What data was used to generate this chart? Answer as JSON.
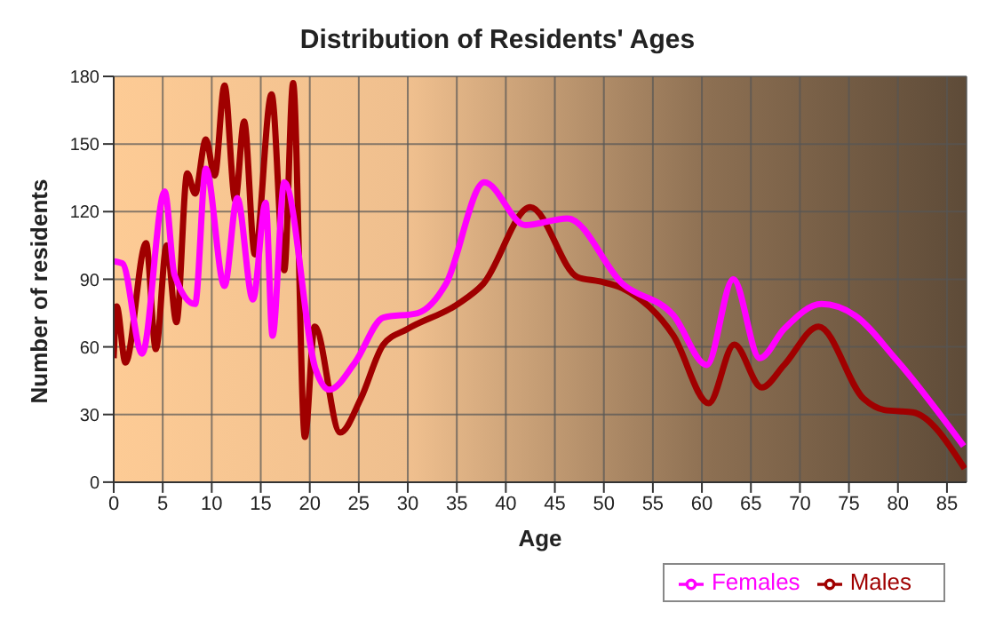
{
  "chart_data": {
    "type": "line",
    "title": "Distribution of Residents' Ages",
    "xlabel": "Age",
    "ylabel": "Number of residents",
    "xlim": [
      0,
      87
    ],
    "xticks": [
      0,
      5,
      10,
      15,
      20,
      25,
      30,
      35,
      40,
      45,
      50,
      55,
      60,
      65,
      70,
      75,
      80,
      85
    ],
    "ylim": [
      0,
      180
    ],
    "yticks": [
      0,
      30,
      60,
      90,
      120,
      150,
      180
    ],
    "grid": true,
    "legend": "bottom right",
    "marker": "none",
    "line_style": "solid",
    "series": [
      {
        "name": "Males",
        "color": "#a00000",
        "x": [
          0,
          0.3,
          1.2,
          3.3,
          4.3,
          5.4,
          6.4,
          7.5,
          8.3,
          9.4,
          10.3,
          11.3,
          12.4,
          13.3,
          14.4,
          16.1,
          17.4,
          18.3,
          19.5,
          20.5,
          23.1,
          25.2,
          27.5,
          30,
          35.1,
          37.7,
          42.5,
          47.3,
          49.6,
          51.9,
          57.1,
          60.7,
          63.3,
          66.1,
          68.4,
          71.9,
          76.5,
          78.6,
          81.5,
          86.8
        ],
        "values": [
          55,
          78,
          53,
          106,
          59,
          105,
          71,
          137,
          128,
          152,
          136,
          176,
          125,
          160,
          101,
          172,
          94,
          177,
          20,
          69,
          22,
          37,
          61,
          68,
          79,
          88,
          122,
          91,
          89,
          86,
          65,
          35,
          61,
          42,
          52,
          69,
          37,
          32,
          31,
          6
        ]
      },
      {
        "name": "Females",
        "color": "#ff00ff",
        "x": [
          0,
          0.9,
          2.9,
          5.2,
          6.2,
          8.3,
          9.4,
          11.3,
          12.6,
          14.2,
          15.5,
          16.2,
          17.4,
          20.6,
          22,
          24.6,
          27.5,
          31,
          33.9,
          37.8,
          42,
          46.3,
          51.9,
          57.1,
          60.5,
          63.2,
          65.9,
          68.4,
          72.2,
          75.6,
          79.7,
          86.7
        ],
        "values": [
          98,
          97,
          57,
          129,
          92,
          79,
          139,
          87,
          126,
          81,
          124,
          65,
          133,
          50,
          41,
          53,
          73,
          75,
          88,
          133,
          114,
          117,
          88,
          74,
          52,
          90,
          55,
          68,
          79,
          74,
          55,
          16
        ]
      }
    ]
  }
}
